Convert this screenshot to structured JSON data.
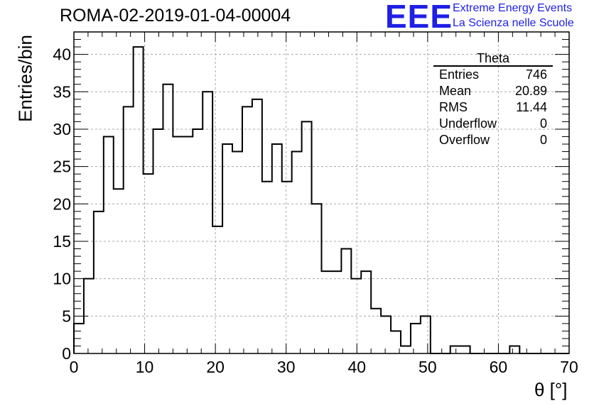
{
  "title": "ROMA-02-2019-01-04-00004",
  "logo": {
    "letters": "EEE",
    "line1": "Extreme Energy Events",
    "line2": "La Scienza nelle Scuole",
    "color": "#1f1fe6"
  },
  "stats": {
    "name": "Theta",
    "rows": [
      {
        "label": "Entries",
        "value": "746"
      },
      {
        "label": "Mean",
        "value": "20.89"
      },
      {
        "label": "RMS",
        "value": "11.44"
      },
      {
        "label": "Underflow",
        "value": "0"
      },
      {
        "label": "Overflow",
        "value": "0"
      }
    ]
  },
  "chart_data": {
    "type": "bar",
    "style": "step-histogram",
    "title": "ROMA-02-2019-01-04-00004",
    "xlabel": "θ [°]",
    "ylabel": "Entries/bin",
    "xlim": [
      0,
      70
    ],
    "ylim": [
      0,
      43
    ],
    "bin_width": 1.4,
    "grid": true,
    "xticks": [
      0,
      10,
      20,
      30,
      40,
      50,
      60,
      70
    ],
    "yticks": [
      0,
      5,
      10,
      15,
      20,
      25,
      30,
      35,
      40
    ],
    "values": [
      4,
      10,
      19,
      29,
      22,
      33,
      41,
      24,
      30,
      36,
      29,
      29,
      30,
      35,
      17,
      28,
      27,
      33,
      34,
      23,
      28,
      23,
      27,
      31,
      20,
      11,
      11,
      14,
      10,
      11,
      6,
      5,
      3,
      1,
      4,
      5,
      0,
      0,
      1,
      1,
      0,
      0,
      0,
      0,
      1,
      0,
      0,
      0,
      0,
      0
    ]
  }
}
